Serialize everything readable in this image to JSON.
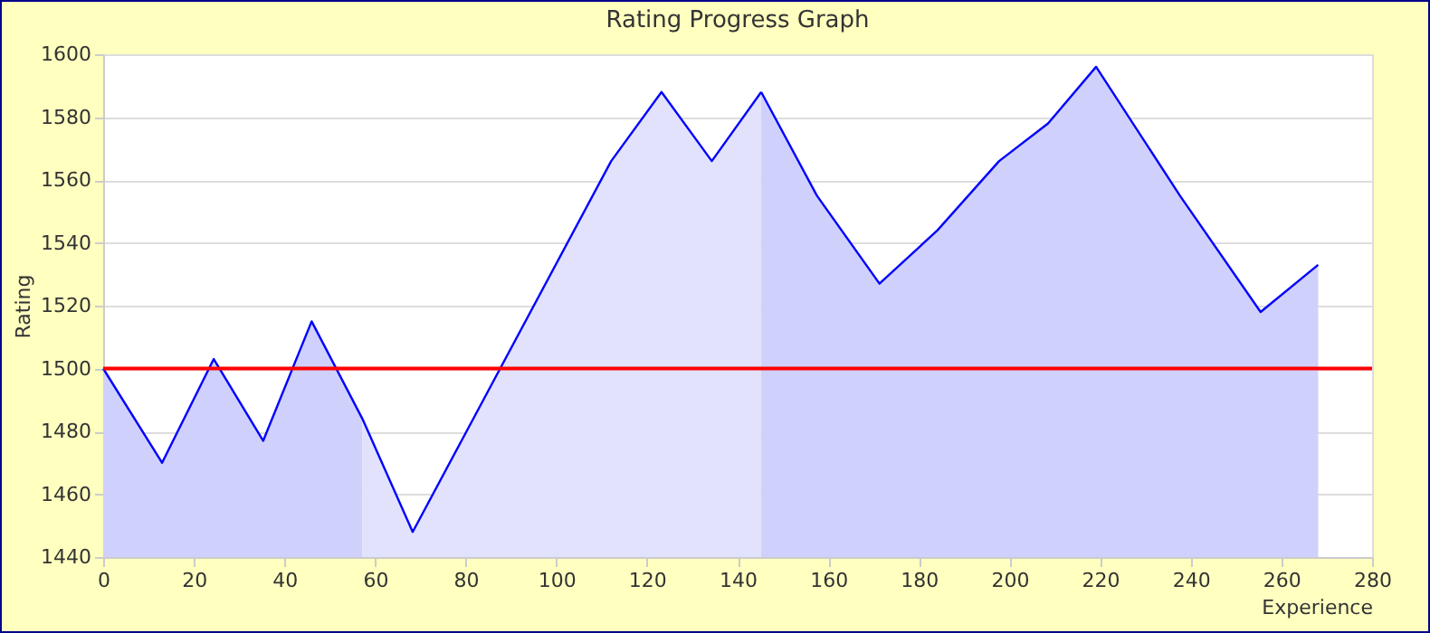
{
  "chart_data": {
    "type": "area",
    "title": "Rating Progress Graph",
    "xlabel": "Experience",
    "ylabel": "Rating",
    "xlim": [
      0,
      280
    ],
    "xticks": [
      0,
      20,
      40,
      60,
      80,
      100,
      120,
      140,
      160,
      180,
      200,
      220,
      240,
      260,
      280
    ],
    "ylim": [
      1440,
      1600
    ],
    "yticks": [
      1440,
      1460,
      1480,
      1500,
      1520,
      1540,
      1560,
      1580,
      1600
    ],
    "grid": "y",
    "series": [
      {
        "color": "#d0d0fc",
        "x": [
          0,
          13,
          24.4,
          35.3,
          46,
          57.2
        ],
        "values": [
          1500,
          1470,
          1503,
          1477,
          1515,
          1484
        ]
      },
      {
        "color": "#e2e2fc",
        "x": [
          57.2,
          68.3,
          112.1,
          123.2,
          134.3,
          145.2
        ],
        "values": [
          1484,
          1448,
          1566,
          1588,
          1566,
          1588
        ]
      },
      {
        "color": "#d0d0fc",
        "x": [
          145.2,
          157.5,
          171.3,
          184.1,
          197.7,
          208.5,
          219.1,
          237.6,
          255.4,
          268.1
        ],
        "values": [
          1588,
          1555,
          1527,
          1544,
          1566,
          1578,
          1596,
          1555,
          1518,
          1533
        ]
      }
    ],
    "ref_lines": [
      {
        "axis": "y",
        "value": 1500,
        "color": "#ff0000"
      }
    ]
  }
}
